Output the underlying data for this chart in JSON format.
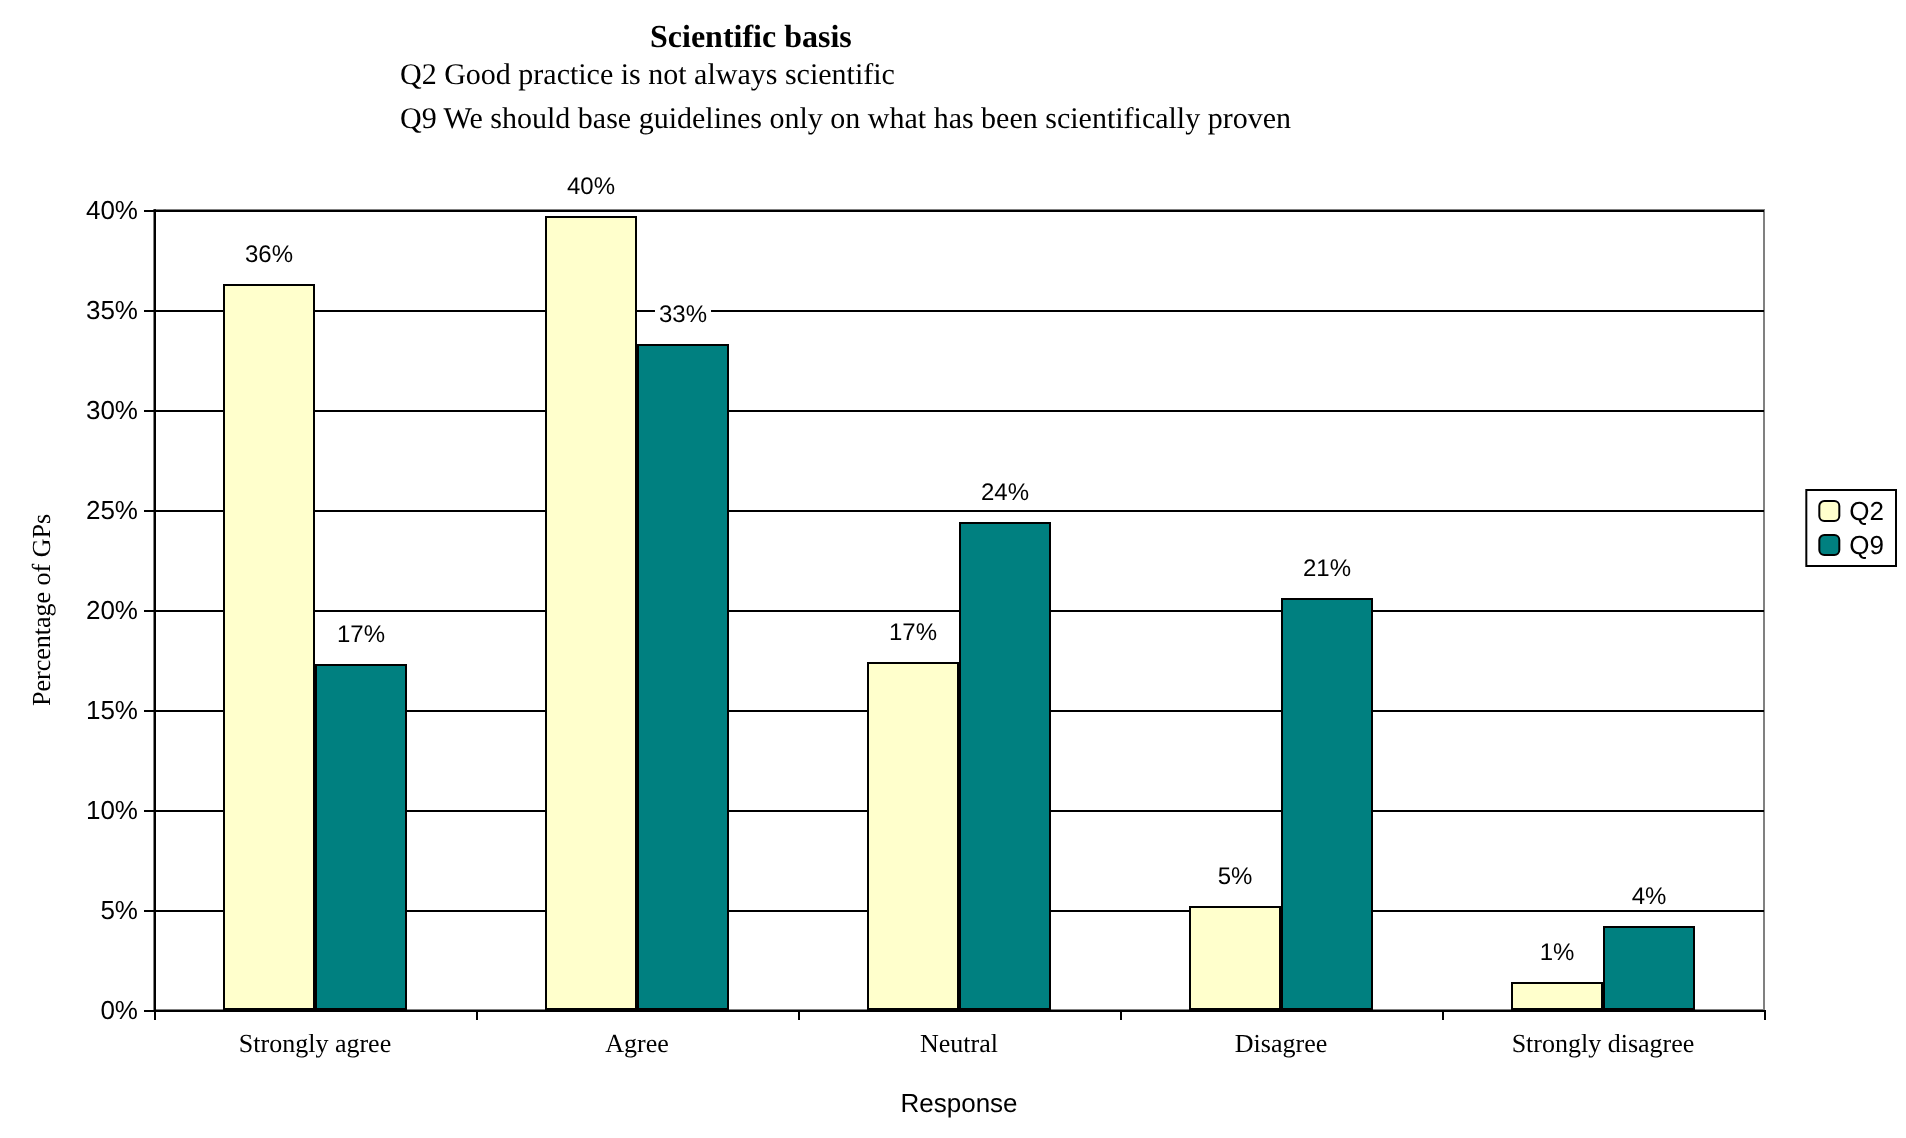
{
  "chart_data": {
    "type": "bar",
    "title": "Scientific basis",
    "subtitle": "Q2 Good practice is not always scientific\nQ9 We should base guidelines only on what has been scientifically proven",
    "xlabel": "Response",
    "ylabel": "Percentage of GPs",
    "categories": [
      "Strongly agree",
      "Agree",
      "Neutral",
      "Disagree",
      "Strongly disagree"
    ],
    "series": [
      {
        "name": "Q2",
        "color": "#ffffcc",
        "values": [
          36.3,
          39.7,
          17.4,
          5.2,
          1.4
        ],
        "value_labels": [
          "36%",
          "40%",
          "17%",
          "5%",
          "1%"
        ]
      },
      {
        "name": "Q9",
        "color": "#008080",
        "values": [
          17.3,
          33.3,
          24.4,
          20.6,
          4.2
        ],
        "value_labels": [
          "17%",
          "33%",
          "24%",
          "21%",
          "4%"
        ]
      }
    ],
    "ylim": [
      0,
      40
    ],
    "yticks": [
      {
        "value": 0,
        "label": "0%"
      },
      {
        "value": 5,
        "label": "5%"
      },
      {
        "value": 10,
        "label": "10%"
      },
      {
        "value": 15,
        "label": "15%"
      },
      {
        "value": 20,
        "label": "20%"
      },
      {
        "value": 25,
        "label": "25%"
      },
      {
        "value": 30,
        "label": "30%"
      },
      {
        "value": 35,
        "label": "35%"
      },
      {
        "value": 40,
        "label": "40%"
      }
    ],
    "grid": "y",
    "legend": "right"
  }
}
